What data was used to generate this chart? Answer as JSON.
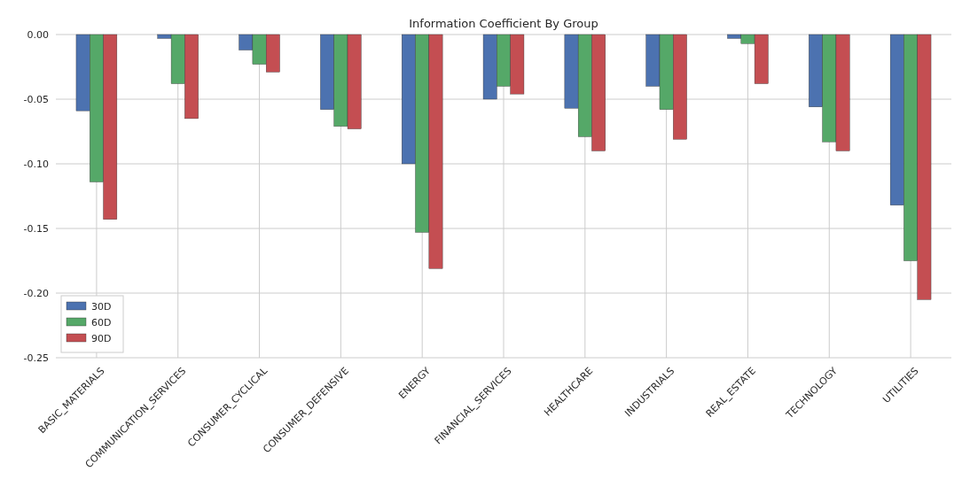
{
  "chart_data": {
    "type": "bar",
    "title": "Information Coefficient By Group",
    "categories": [
      "BASIC_MATERIALS",
      "COMMUNICATION_SERVICES",
      "CONSUMER_CYCLICAL",
      "CONSUMER_DEFENSIVE",
      "ENERGY",
      "FINANCIAL_SERVICES",
      "HEALTHCARE",
      "INDUSTRIALS",
      "REAL_ESTATE",
      "TECHNOLOGY",
      "UTILITIES"
    ],
    "series": [
      {
        "name": "30D",
        "color": "#4c72b0",
        "values": [
          -0.059,
          -0.003,
          -0.012,
          -0.058,
          -0.1,
          -0.05,
          -0.057,
          -0.04,
          -0.003,
          -0.056,
          -0.132
        ]
      },
      {
        "name": "60D",
        "color": "#55a868",
        "values": [
          -0.114,
          -0.038,
          -0.023,
          -0.071,
          -0.153,
          -0.04,
          -0.079,
          -0.058,
          -0.007,
          -0.083,
          -0.175
        ]
      },
      {
        "name": "90D",
        "color": "#c44e52",
        "values": [
          -0.143,
          -0.065,
          -0.029,
          -0.073,
          -0.181,
          -0.046,
          -0.09,
          -0.081,
          -0.038,
          -0.09,
          -0.205
        ]
      }
    ],
    "ylim": [
      -0.25,
      0
    ],
    "yticks": [
      {
        "value": 0,
        "label": "0.00"
      },
      {
        "value": -0.05,
        "label": "-0.05"
      },
      {
        "value": -0.1,
        "label": "-0.10"
      },
      {
        "value": -0.15,
        "label": "-0.15"
      },
      {
        "value": -0.2,
        "label": "-0.20"
      },
      {
        "value": -0.25,
        "label": "-0.25"
      }
    ],
    "grid": true,
    "legend": "bottom left"
  }
}
